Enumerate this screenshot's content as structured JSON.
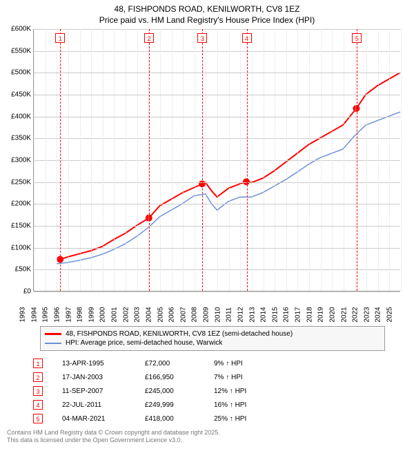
{
  "title": {
    "line1": "48, FISHPONDS ROAD, KENILWORTH, CV8 1EZ",
    "line2": "Price paid vs. HM Land Registry's House Price Index (HPI)",
    "fontsize": 12,
    "color": "#000000"
  },
  "chart": {
    "type": "line",
    "background_color": "#ffffff",
    "grid_color": "#cccccc",
    "x": {
      "min": 1993,
      "max": 2025,
      "ticks": [
        1993,
        1994,
        1995,
        1996,
        1997,
        1998,
        1999,
        2000,
        2001,
        2002,
        2003,
        2004,
        2005,
        2006,
        2007,
        2008,
        2009,
        2010,
        2011,
        2012,
        2013,
        2014,
        2015,
        2016,
        2017,
        2018,
        2019,
        2020,
        2021,
        2022,
        2023,
        2024,
        2025
      ],
      "label_fontsize": 10,
      "rotation": -90
    },
    "y": {
      "min": 0,
      "max": 600000,
      "ticks": [
        0,
        50000,
        100000,
        150000,
        200000,
        250000,
        300000,
        350000,
        400000,
        450000,
        500000,
        550000,
        600000
      ],
      "labels": [
        "£0",
        "£50K",
        "£100K",
        "£150K",
        "£200K",
        "£250K",
        "£300K",
        "£350K",
        "£400K",
        "£450K",
        "£500K",
        "£550K",
        "£600K"
      ],
      "label_fontsize": 10
    },
    "series": [
      {
        "name": "48, FISHPONDS ROAD, KENILWORTH, CV8 1EZ (semi-detached house)",
        "color": "#FF0000",
        "line_width": 2,
        "points": [
          [
            1995.3,
            72000
          ],
          [
            1996,
            78000
          ],
          [
            1997,
            85000
          ],
          [
            1998,
            92000
          ],
          [
            1999,
            102000
          ],
          [
            2000,
            118000
          ],
          [
            2001,
            132000
          ],
          [
            2002,
            150000
          ],
          [
            2003.05,
            166950
          ],
          [
            2004,
            195000
          ],
          [
            2005,
            210000
          ],
          [
            2006,
            225000
          ],
          [
            2007.7,
            245000
          ],
          [
            2008,
            248000
          ],
          [
            2008.5,
            230000
          ],
          [
            2009,
            215000
          ],
          [
            2010,
            235000
          ],
          [
            2011,
            245000
          ],
          [
            2011.56,
            249999
          ],
          [
            2012,
            248000
          ],
          [
            2013,
            258000
          ],
          [
            2014,
            275000
          ],
          [
            2015,
            295000
          ],
          [
            2016,
            315000
          ],
          [
            2017,
            335000
          ],
          [
            2018,
            350000
          ],
          [
            2019,
            365000
          ],
          [
            2020,
            380000
          ],
          [
            2021.17,
            418000
          ],
          [
            2022,
            450000
          ],
          [
            2023,
            470000
          ],
          [
            2024,
            485000
          ],
          [
            2025,
            500000
          ]
        ],
        "markers": [
          {
            "x": 1995.3,
            "y": 72000
          },
          {
            "x": 2003.05,
            "y": 166950
          },
          {
            "x": 2007.7,
            "y": 245000
          },
          {
            "x": 2011.56,
            "y": 249999
          },
          {
            "x": 2021.17,
            "y": 418000
          }
        ],
        "marker_color": "#FF0000",
        "marker_size": 5
      },
      {
        "name": "HPI: Average price, semi-detached house, Warwick",
        "color": "#6A8FD8",
        "line_width": 1.5,
        "points": [
          [
            1995,
            62000
          ],
          [
            1996,
            65000
          ],
          [
            1997,
            70000
          ],
          [
            1998,
            76000
          ],
          [
            1999,
            84000
          ],
          [
            2000,
            95000
          ],
          [
            2001,
            108000
          ],
          [
            2002,
            125000
          ],
          [
            2003,
            145000
          ],
          [
            2004,
            170000
          ],
          [
            2005,
            185000
          ],
          [
            2006,
            200000
          ],
          [
            2007,
            218000
          ],
          [
            2008,
            222000
          ],
          [
            2008.5,
            200000
          ],
          [
            2009,
            185000
          ],
          [
            2010,
            205000
          ],
          [
            2011,
            215000
          ],
          [
            2012,
            215000
          ],
          [
            2013,
            225000
          ],
          [
            2014,
            240000
          ],
          [
            2015,
            255000
          ],
          [
            2016,
            272000
          ],
          [
            2017,
            290000
          ],
          [
            2018,
            305000
          ],
          [
            2019,
            315000
          ],
          [
            2020,
            325000
          ],
          [
            2021,
            355000
          ],
          [
            2022,
            380000
          ],
          [
            2023,
            390000
          ],
          [
            2024,
            400000
          ],
          [
            2025,
            410000
          ]
        ]
      }
    ],
    "transaction_markers": [
      {
        "n": "1",
        "x": 1995.3
      },
      {
        "n": "2",
        "x": 2003.05
      },
      {
        "n": "3",
        "x": 2007.7
      },
      {
        "n": "4",
        "x": 2011.56
      },
      {
        "n": "5",
        "x": 2021.17
      }
    ]
  },
  "legend": {
    "border_color": "#999999",
    "background_color": "#f7f7f7",
    "fontsize": 10,
    "items": [
      {
        "color": "#FF0000",
        "label": "48, FISHPONDS ROAD, KENILWORTH, CV8 1EZ (semi-detached house)"
      },
      {
        "color": "#6A8FD8",
        "label": "HPI: Average price, semi-detached house, Warwick"
      }
    ]
  },
  "transactions": {
    "fontsize": 10,
    "rows": [
      {
        "n": "1",
        "date": "13-APR-1995",
        "price": "£72,000",
        "pct": "9% ↑ HPI"
      },
      {
        "n": "2",
        "date": "17-JAN-2003",
        "price": "£166,950",
        "pct": "7% ↑ HPI"
      },
      {
        "n": "3",
        "date": "11-SEP-2007",
        "price": "£245,000",
        "pct": "12% ↑ HPI"
      },
      {
        "n": "4",
        "date": "22-JUL-2011",
        "price": "£249,999",
        "pct": "16% ↑ HPI"
      },
      {
        "n": "5",
        "date": "04-MAR-2021",
        "price": "£418,000",
        "pct": "25% ↑ HPI"
      }
    ]
  },
  "footer": {
    "line1": "Contains HM Land Registry data © Crown copyright and database right 2025.",
    "line2": "This data is licensed under the Open Government Licence v3.0.",
    "color": "#777777",
    "fontsize": 9
  }
}
